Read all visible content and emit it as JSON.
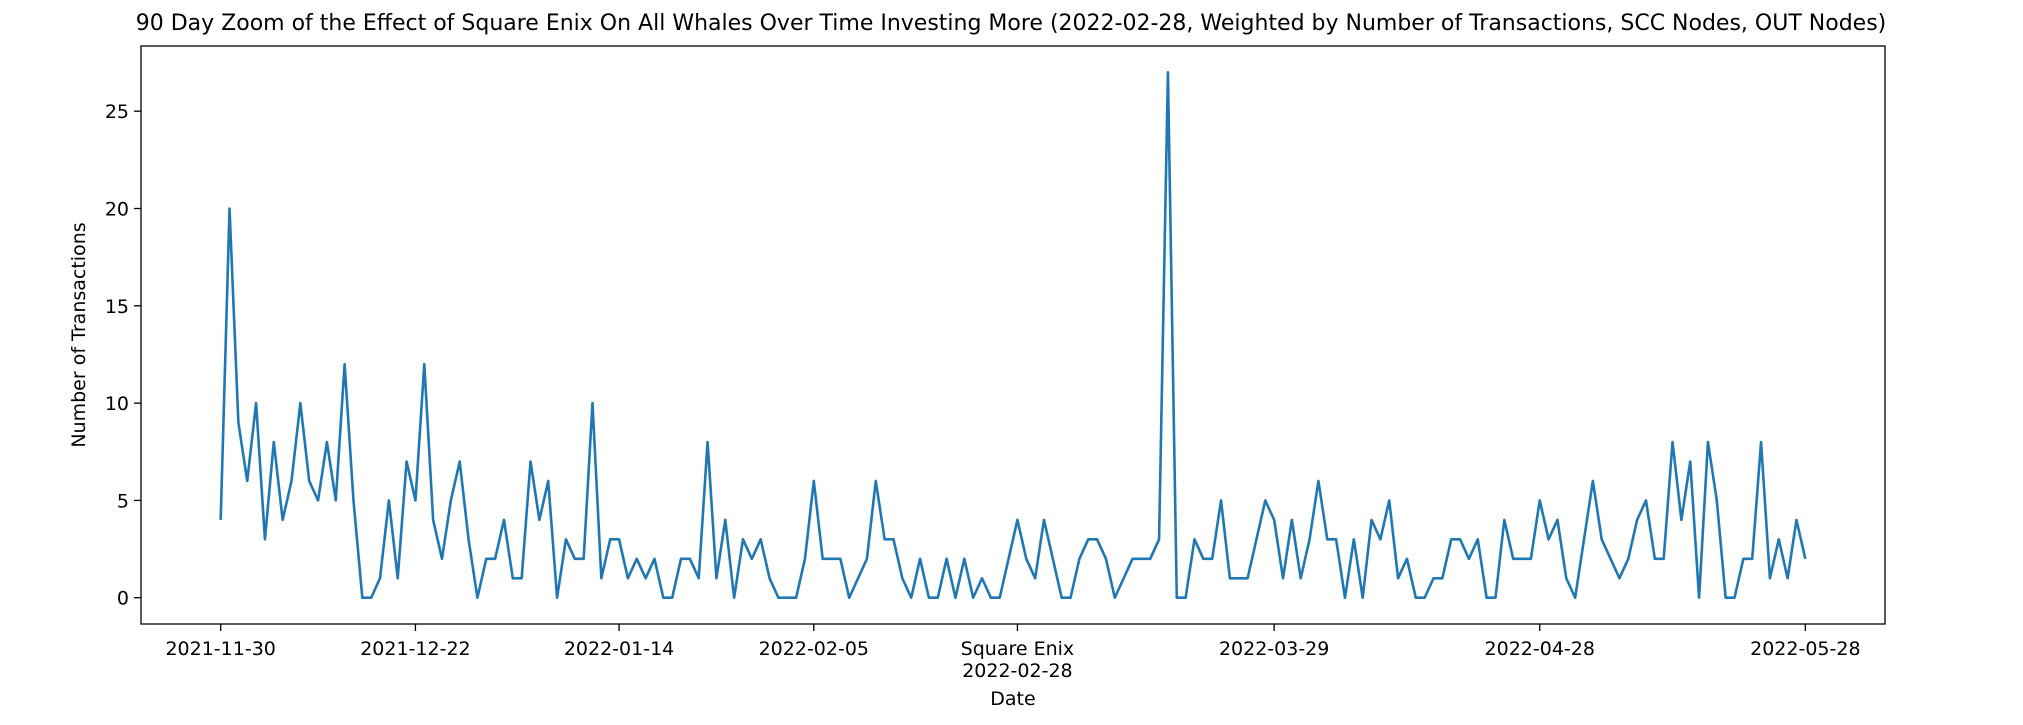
{
  "chart_data": {
    "type": "line",
    "title": "90 Day Zoom of the Effect of Square Enix On All Whales Over Time Investing More (2022-02-28, Weighted by Number of Transactions, SCC Nodes, OUT Nodes)",
    "xlabel": "Date",
    "ylabel": "Number of Transactions",
    "x_start": "2021-11-30",
    "x_end": "2022-05-28",
    "xlim": [
      "2021-11-21",
      "2022-06-06"
    ],
    "ylim": [
      -1.35,
      28.35
    ],
    "yticks": [
      0,
      5,
      10,
      15,
      20,
      25
    ],
    "xticks": [
      {
        "date": "2021-11-30",
        "label": "2021-11-30"
      },
      {
        "date": "2021-12-22",
        "label": "2021-12-22"
      },
      {
        "date": "2022-01-14",
        "label": "2022-01-14"
      },
      {
        "date": "2022-02-05",
        "label": "2022-02-05"
      },
      {
        "date": "2022-02-28",
        "label": "Square Enix\n2022-02-28"
      },
      {
        "date": "2022-03-29",
        "label": "2022-03-29"
      },
      {
        "date": "2022-04-28",
        "label": "2022-04-28"
      },
      {
        "date": "2022-05-28",
        "label": "2022-05-28"
      }
    ],
    "grid": false,
    "series": [
      {
        "color": "#1f77b4",
        "values": [
          4,
          20,
          9,
          6,
          10,
          3,
          8,
          4,
          6,
          10,
          6,
          5,
          8,
          5,
          12,
          5,
          0,
          0,
          1,
          5,
          1,
          7,
          5,
          12,
          4,
          2,
          5,
          7,
          3,
          0,
          2,
          2,
          4,
          1,
          1,
          7,
          4,
          6,
          0,
          3,
          2,
          2,
          10,
          1,
          3,
          3,
          1,
          2,
          1,
          2,
          0,
          0,
          2,
          2,
          1,
          8,
          1,
          4,
          0,
          3,
          2,
          3,
          1,
          0,
          0,
          0,
          2,
          6,
          2,
          2,
          2,
          0,
          1,
          2,
          6,
          3,
          3,
          1,
          0,
          2,
          0,
          0,
          2,
          0,
          2,
          0,
          1,
          0,
          0,
          2,
          4,
          2,
          1,
          4,
          2,
          0,
          0,
          2,
          3,
          3,
          2,
          0,
          1,
          2,
          2,
          2,
          3,
          27,
          0,
          0,
          3,
          2,
          2,
          5,
          1,
          1,
          1,
          3,
          5,
          4,
          1,
          4,
          1,
          3,
          6,
          3,
          3,
          0,
          3,
          0,
          4,
          3,
          5,
          1,
          2,
          0,
          0,
          1,
          1,
          3,
          3,
          2,
          3,
          0,
          0,
          4,
          2,
          2,
          2,
          5,
          3,
          4,
          1,
          0,
          3,
          6,
          3,
          2,
          1,
          2,
          4,
          5,
          2,
          2,
          8,
          4,
          7,
          0,
          8,
          5,
          0,
          0,
          2,
          2,
          8,
          1,
          3,
          1,
          4,
          2
        ]
      }
    ]
  }
}
